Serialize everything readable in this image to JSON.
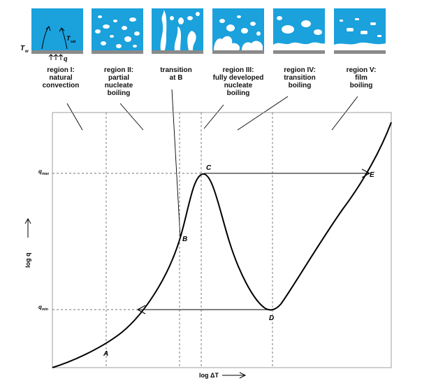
{
  "regions": [
    {
      "label": "region I:\nnatural\nconvection"
    },
    {
      "label": "region II:\npartial\nnucleate\nboiling"
    },
    {
      "label": "transition\nat B"
    },
    {
      "label": "region III:\nfully developed\nnucleate\nboiling"
    },
    {
      "label": "region IV:\ntransition\nboiling"
    },
    {
      "label": "region V:\nfilm\nboiling"
    }
  ],
  "thumb_symbols": {
    "Tw": "T",
    "Tw_sub": "w",
    "Tsat": "T",
    "Tsat_sub": "sat",
    "q": "q"
  },
  "axes": {
    "ylabel": "log q",
    "xlabel": "log ΔT"
  },
  "ticks": {
    "qmax": "q",
    "qmax_sub": "max",
    "qmin": "q",
    "qmin_sub": "min"
  },
  "points": {
    "A": "A",
    "B": "B",
    "C": "C",
    "D": "D",
    "E": "E"
  },
  "colors": {
    "water": "#1ba1dc",
    "vapor": "#ffffff",
    "wall": "#8a8a8a"
  }
}
